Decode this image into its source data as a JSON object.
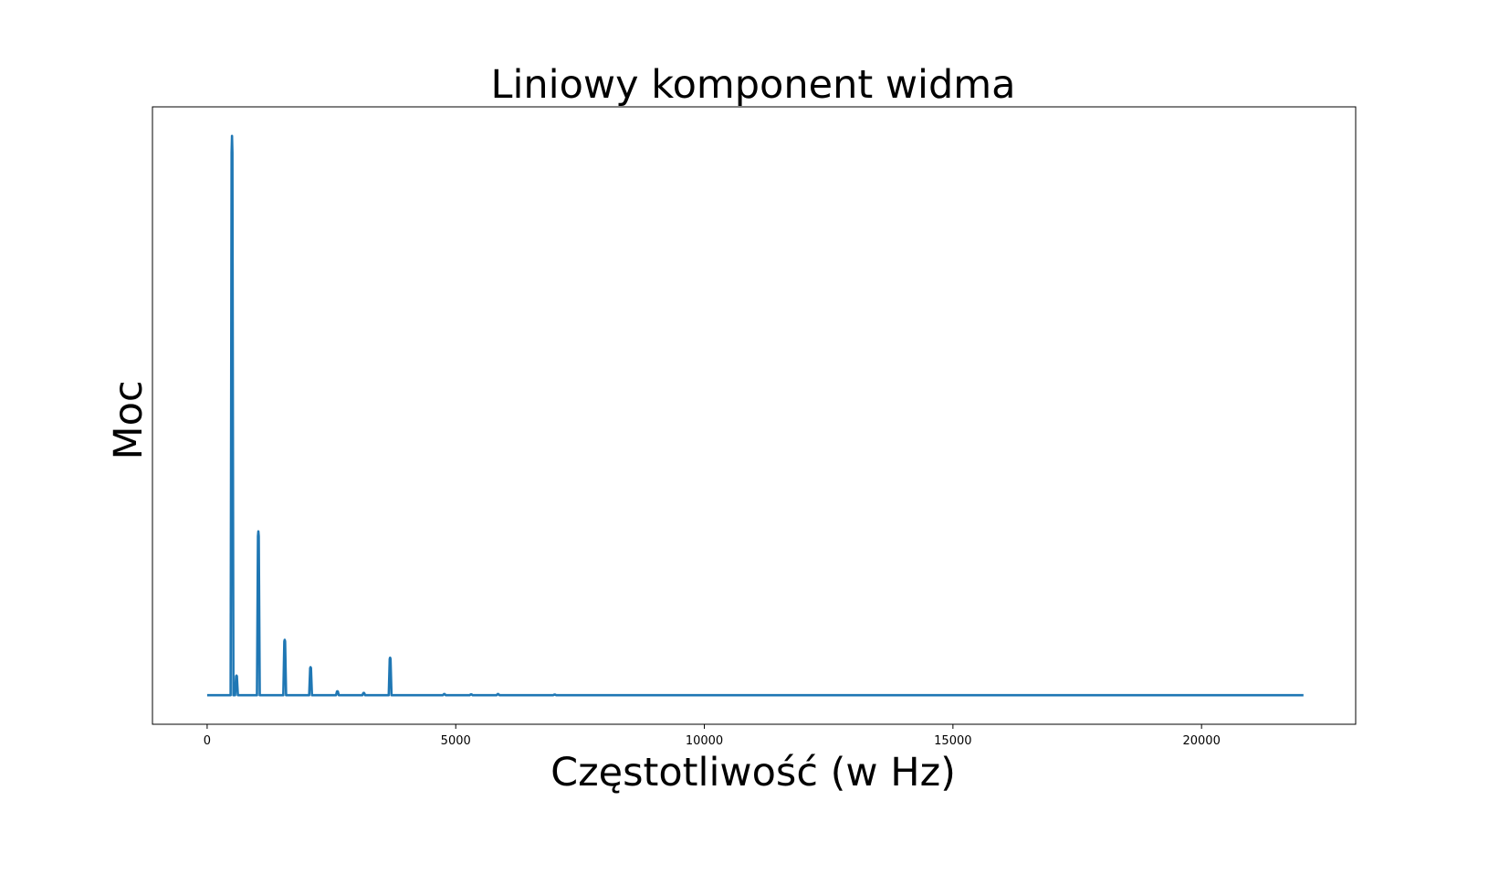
{
  "chart_data": {
    "type": "line",
    "title": "Liniowy komponent widma",
    "xlabel": "Częstotliwość (w Hz)",
    "ylabel": "Moc",
    "xlim": [
      -1100,
      23100
    ],
    "ylim": [
      -0.052,
      1.052
    ],
    "x_ticks": [
      0,
      5000,
      10000,
      15000,
      20000
    ],
    "y_ticks": [],
    "grid": false,
    "line_color": "#1f77b4",
    "x_range": [
      0,
      22050
    ],
    "baseline": 0.0,
    "peaks": [
      {
        "x": 500,
        "y": 1.0
      },
      {
        "x": 590,
        "y": 0.035
      },
      {
        "x": 1030,
        "y": 0.293
      },
      {
        "x": 1560,
        "y": 0.099
      },
      {
        "x": 2080,
        "y": 0.05
      },
      {
        "x": 2620,
        "y": 0.007
      },
      {
        "x": 3150,
        "y": 0.004
      },
      {
        "x": 3680,
        "y": 0.067
      },
      {
        "x": 4770,
        "y": 0.002
      },
      {
        "x": 5310,
        "y": 0.0015
      },
      {
        "x": 5850,
        "y": 0.002
      },
      {
        "x": 6990,
        "y": 0.001
      }
    ]
  }
}
